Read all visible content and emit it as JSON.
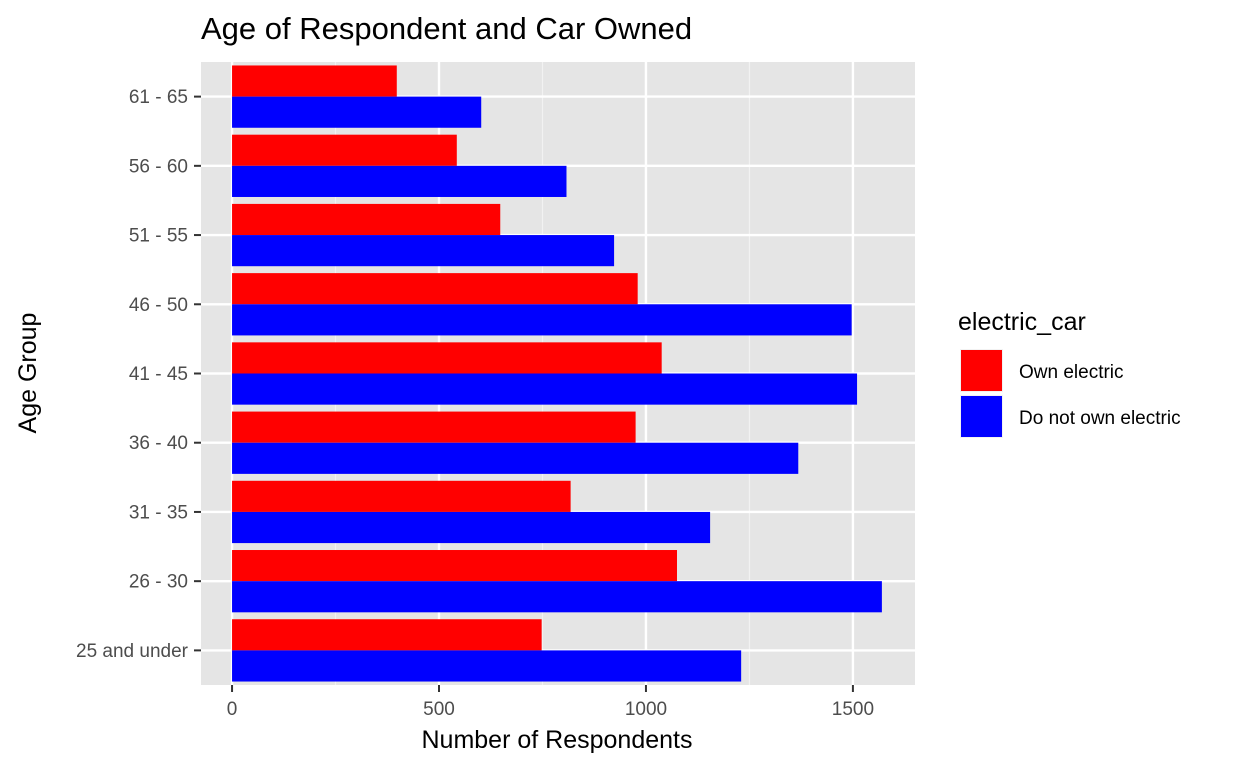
{
  "chart_data": {
    "type": "bar",
    "orientation": "horizontal",
    "position": "dodge",
    "title": "Age of Respondent and Car Owned",
    "xlabel": "Number of Respondents",
    "ylabel": "Age Group",
    "xlim": [
      -75,
      1650
    ],
    "x_ticks": [
      0,
      500,
      1000,
      1500
    ],
    "x_tick_labels": [
      "0",
      "500",
      "1000",
      "1500"
    ],
    "categories": [
      "25 and under",
      "26 - 30",
      "31 - 35",
      "36 - 40",
      "41 - 45",
      "46 - 50",
      "51 - 55",
      "56 - 60",
      "61 - 65"
    ],
    "series": [
      {
        "name": "Own electric",
        "color": "#ff0000",
        "values": [
          748,
          1075,
          818,
          975,
          1038,
          980,
          648,
          543,
          398
        ]
      },
      {
        "name": "Do not own electric",
        "color": "#0000ff",
        "values": [
          1230,
          1570,
          1155,
          1368,
          1510,
          1497,
          923,
          808,
          602
        ]
      }
    ],
    "legend": {
      "title": "electric_car",
      "position": "right"
    },
    "panel_background": "#e5e5e5",
    "grid": true
  }
}
